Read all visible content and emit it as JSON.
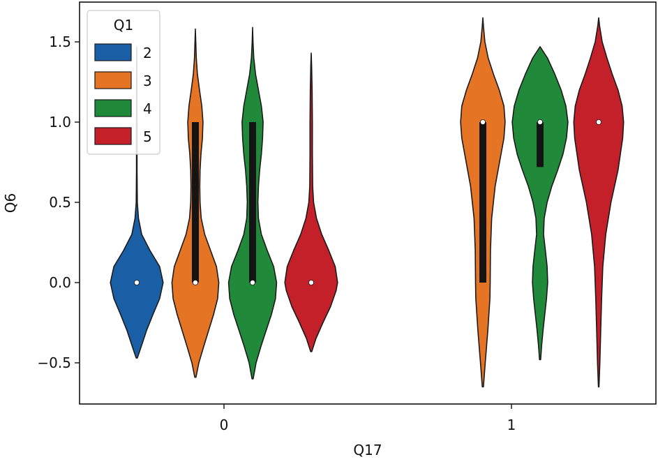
{
  "chart_data": {
    "type": "violin",
    "xlabel": "Q17",
    "ylabel": "Q6",
    "categories": [
      "0",
      "1"
    ],
    "ylim": [
      -0.75,
      1.75
    ],
    "yticks": [
      -0.5,
      0.0,
      0.5,
      1.0,
      1.5
    ],
    "ytick_labels": [
      "−0.5",
      "0.0",
      "0.5",
      "1.0",
      "1.5"
    ],
    "grid": false,
    "legend": {
      "title": "Q1",
      "placement": "top-left",
      "entries": [
        "2",
        "3",
        "4",
        "5"
      ]
    },
    "series": [
      {
        "name": "2",
        "color": "#1a5fa5",
        "violins": [
          {
            "category": "0",
            "median": 0.0,
            "q1": 0.0,
            "q3": 0.0,
            "profile": [
              [
                -0.47,
                0.02
              ],
              [
                -0.4,
                0.15
              ],
              [
                -0.3,
                0.33
              ],
              [
                -0.2,
                0.55
              ],
              [
                -0.1,
                0.78
              ],
              [
                0.0,
                0.9
              ],
              [
                0.1,
                0.78
              ],
              [
                0.2,
                0.45
              ],
              [
                0.3,
                0.17
              ],
              [
                0.4,
                0.06
              ],
              [
                0.5,
                0.02
              ],
              [
                0.7,
                0.01
              ],
              [
                1.0,
                0.01
              ],
              [
                1.3,
                0.005
              ],
              [
                1.47,
                0.0
              ]
            ]
          }
        ]
      },
      {
        "name": "3",
        "color": "#e57425",
        "violins": [
          {
            "category": "0",
            "median": 0.0,
            "q1": 0.0,
            "q3": 1.0,
            "profile": [
              [
                -0.59,
                0.02
              ],
              [
                -0.5,
                0.12
              ],
              [
                -0.4,
                0.28
              ],
              [
                -0.3,
                0.45
              ],
              [
                -0.2,
                0.62
              ],
              [
                -0.1,
                0.76
              ],
              [
                0.0,
                0.8
              ],
              [
                0.1,
                0.72
              ],
              [
                0.2,
                0.52
              ],
              [
                0.3,
                0.32
              ],
              [
                0.4,
                0.2
              ],
              [
                0.5,
                0.16
              ],
              [
                0.6,
                0.15
              ],
              [
                0.7,
                0.16
              ],
              [
                0.8,
                0.19
              ],
              [
                0.9,
                0.24
              ],
              [
                1.0,
                0.26
              ],
              [
                1.1,
                0.22
              ],
              [
                1.2,
                0.14
              ],
              [
                1.3,
                0.07
              ],
              [
                1.4,
                0.03
              ],
              [
                1.5,
                0.015
              ],
              [
                1.58,
                0.0
              ]
            ]
          },
          {
            "category": "1",
            "median": 1.0,
            "q1": 0.0,
            "q3": 1.0,
            "profile": [
              [
                -0.65,
                0.02
              ],
              [
                -0.5,
                0.08
              ],
              [
                -0.3,
                0.17
              ],
              [
                -0.1,
                0.24
              ],
              [
                0.0,
                0.25
              ],
              [
                0.2,
                0.26
              ],
              [
                0.4,
                0.3
              ],
              [
                0.6,
                0.42
              ],
              [
                0.8,
                0.62
              ],
              [
                0.9,
                0.72
              ],
              [
                1.0,
                0.76
              ],
              [
                1.1,
                0.72
              ],
              [
                1.2,
                0.56
              ],
              [
                1.3,
                0.36
              ],
              [
                1.4,
                0.18
              ],
              [
                1.5,
                0.07
              ],
              [
                1.6,
                0.02
              ],
              [
                1.65,
                0.0
              ]
            ]
          }
        ]
      },
      {
        "name": "4",
        "color": "#208a3a",
        "violins": [
          {
            "category": "0",
            "median": 0.0,
            "q1": 0.0,
            "q3": 1.0,
            "profile": [
              [
                -0.6,
                0.02
              ],
              [
                -0.5,
                0.12
              ],
              [
                -0.4,
                0.28
              ],
              [
                -0.3,
                0.46
              ],
              [
                -0.2,
                0.64
              ],
              [
                -0.1,
                0.78
              ],
              [
                0.0,
                0.82
              ],
              [
                0.1,
                0.72
              ],
              [
                0.2,
                0.5
              ],
              [
                0.3,
                0.3
              ],
              [
                0.4,
                0.2
              ],
              [
                0.5,
                0.18
              ],
              [
                0.6,
                0.2
              ],
              [
                0.7,
                0.24
              ],
              [
                0.8,
                0.3
              ],
              [
                0.9,
                0.34
              ],
              [
                1.0,
                0.36
              ],
              [
                1.1,
                0.3
              ],
              [
                1.2,
                0.2
              ],
              [
                1.3,
                0.1
              ],
              [
                1.4,
                0.04
              ],
              [
                1.5,
                0.015
              ],
              [
                1.59,
                0.0
              ]
            ]
          },
          {
            "category": "1",
            "median": 1.0,
            "q1": 0.72,
            "q3": 1.0,
            "profile": [
              [
                -0.48,
                0.02
              ],
              [
                -0.4,
                0.05
              ],
              [
                -0.3,
                0.1
              ],
              [
                -0.2,
                0.16
              ],
              [
                -0.1,
                0.22
              ],
              [
                0.0,
                0.26
              ],
              [
                0.1,
                0.24
              ],
              [
                0.2,
                0.18
              ],
              [
                0.3,
                0.12
              ],
              [
                0.4,
                0.14
              ],
              [
                0.5,
                0.24
              ],
              [
                0.6,
                0.4
              ],
              [
                0.7,
                0.6
              ],
              [
                0.8,
                0.78
              ],
              [
                0.9,
                0.9
              ],
              [
                1.0,
                0.95
              ],
              [
                1.1,
                0.88
              ],
              [
                1.2,
                0.72
              ],
              [
                1.3,
                0.5
              ],
              [
                1.4,
                0.25
              ],
              [
                1.47,
                0.0
              ]
            ]
          }
        ]
      },
      {
        "name": "5",
        "color": "#c3202a",
        "violins": [
          {
            "category": "0",
            "median": 0.0,
            "q1": 0.0,
            "q3": 0.0,
            "profile": [
              [
                -0.43,
                0.02
              ],
              [
                -0.35,
                0.16
              ],
              [
                -0.25,
                0.4
              ],
              [
                -0.15,
                0.66
              ],
              [
                -0.05,
                0.85
              ],
              [
                0.0,
                0.9
              ],
              [
                0.1,
                0.82
              ],
              [
                0.2,
                0.6
              ],
              [
                0.3,
                0.36
              ],
              [
                0.4,
                0.18
              ],
              [
                0.5,
                0.08
              ],
              [
                0.6,
                0.05
              ],
              [
                0.8,
                0.04
              ],
              [
                1.0,
                0.04
              ],
              [
                1.2,
                0.03
              ],
              [
                1.35,
                0.015
              ],
              [
                1.43,
                0.0
              ]
            ]
          },
          {
            "category": "1",
            "median": 1.0,
            "q1": 1.0,
            "q3": 1.0,
            "profile": [
              [
                -0.65,
                0.01
              ],
              [
                -0.5,
                0.04
              ],
              [
                -0.3,
                0.07
              ],
              [
                -0.1,
                0.1
              ],
              [
                0.1,
                0.14
              ],
              [
                0.3,
                0.24
              ],
              [
                0.5,
                0.42
              ],
              [
                0.7,
                0.66
              ],
              [
                0.9,
                0.82
              ],
              [
                1.0,
                0.85
              ],
              [
                1.1,
                0.8
              ],
              [
                1.2,
                0.66
              ],
              [
                1.3,
                0.46
              ],
              [
                1.4,
                0.28
              ],
              [
                1.5,
                0.12
              ],
              [
                1.6,
                0.03
              ],
              [
                1.65,
                0.0
              ]
            ]
          }
        ]
      }
    ]
  }
}
